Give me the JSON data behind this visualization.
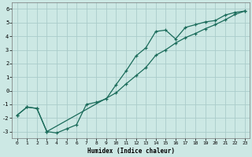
{
  "xlabel": "Humidex (Indice chaleur)",
  "bg_color": "#cce8e4",
  "grid_color": "#aaccca",
  "line_color": "#1a6b5a",
  "xlim": [
    -0.5,
    23.5
  ],
  "ylim": [
    -3.5,
    6.5
  ],
  "xticks": [
    0,
    1,
    2,
    3,
    4,
    5,
    6,
    7,
    8,
    9,
    10,
    11,
    12,
    13,
    14,
    15,
    16,
    17,
    18,
    19,
    20,
    21,
    22,
    23
  ],
  "yticks": [
    -3,
    -2,
    -1,
    0,
    1,
    2,
    3,
    4,
    5,
    6
  ],
  "line1_x": [
    0,
    1,
    2,
    3,
    4,
    5,
    6,
    7,
    8,
    9,
    10,
    11,
    12,
    13,
    14,
    15,
    16,
    17,
    18,
    19,
    20,
    21,
    22,
    23
  ],
  "line1_y": [
    -1.8,
    -1.2,
    -1.3,
    -3.0,
    -3.1,
    -2.8,
    -2.5,
    -1.0,
    -0.85,
    -0.6,
    0.45,
    1.45,
    2.55,
    3.15,
    4.35,
    4.45,
    3.8,
    4.65,
    4.85,
    5.05,
    5.15,
    5.55,
    5.75,
    5.85
  ],
  "line2_x": [
    0,
    1,
    2,
    3,
    10,
    11,
    12,
    13,
    14,
    15,
    16,
    17,
    18,
    19,
    20,
    21,
    22,
    23
  ],
  "line2_y": [
    -1.8,
    -1.2,
    -1.3,
    -3.0,
    -0.15,
    0.5,
    1.1,
    1.7,
    2.6,
    3.0,
    3.5,
    3.9,
    4.2,
    4.55,
    4.85,
    5.2,
    5.6,
    5.85
  ]
}
